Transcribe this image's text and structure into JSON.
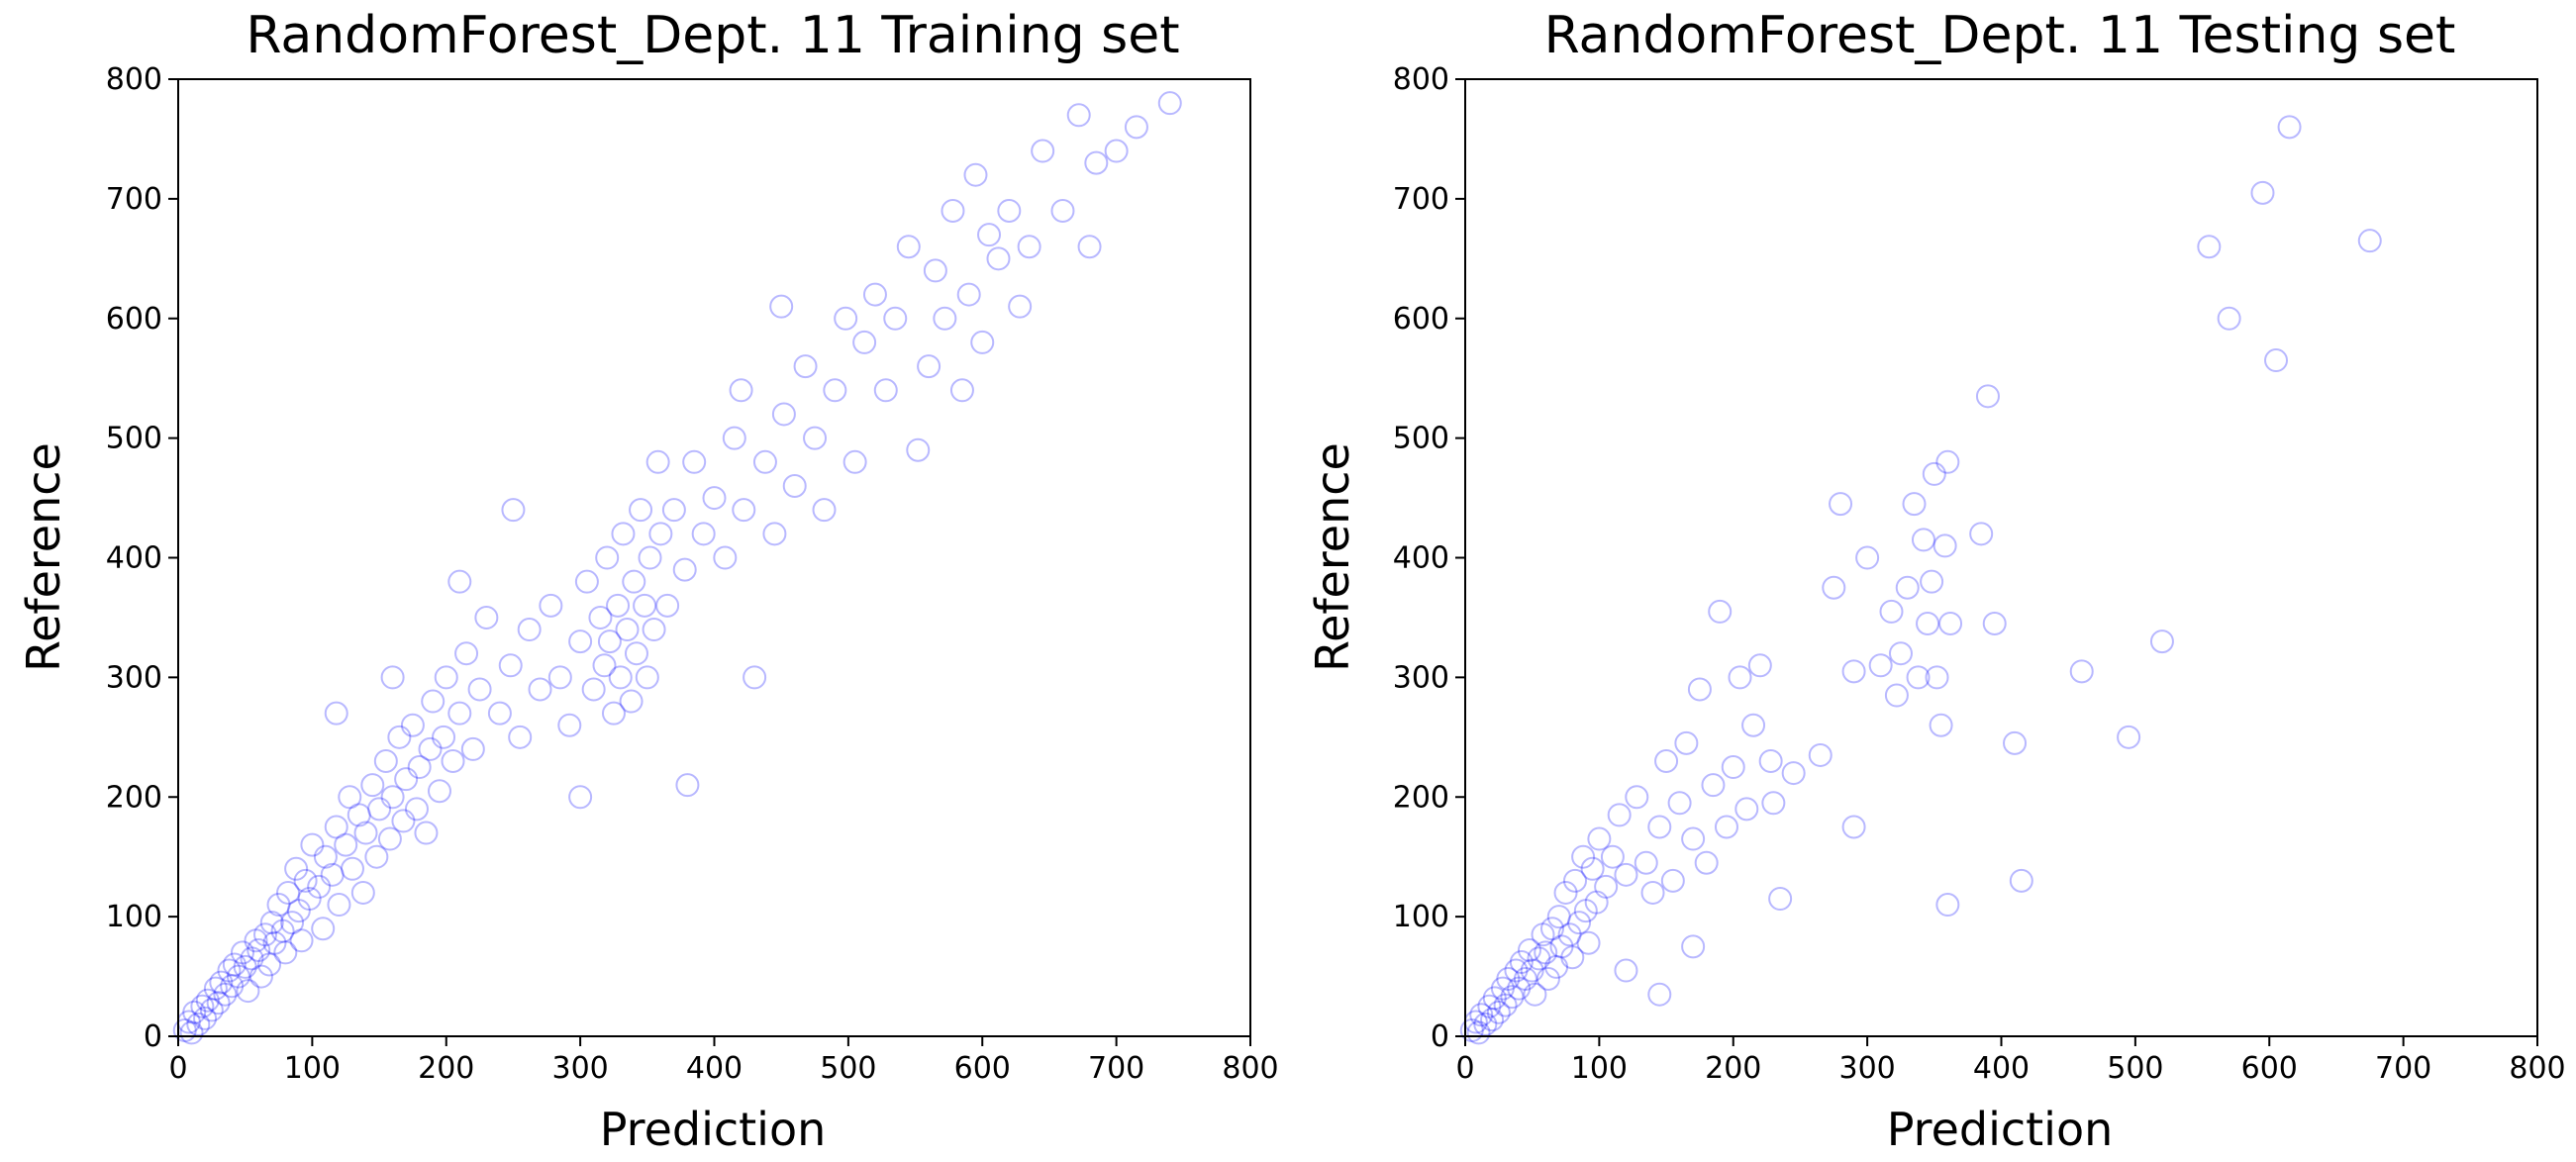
{
  "chart_data": [
    {
      "type": "scatter",
      "title": "RandomForest_Dept. 11 Training set",
      "xlabel": "Prediction",
      "ylabel": "Reference",
      "xlim": [
        0,
        800
      ],
      "ylim": [
        0,
        800
      ],
      "xticks": [
        "0",
        "100",
        "200",
        "300",
        "400",
        "500",
        "600",
        "700",
        "800"
      ],
      "yticks": [
        "0",
        "100",
        "200",
        "300",
        "400",
        "500",
        "600",
        "700",
        "800"
      ],
      "grid": false,
      "marker": "open-circle",
      "color": "#0000ff",
      "points": [
        [
          5,
          5
        ],
        [
          8,
          12
        ],
        [
          10,
          3
        ],
        [
          12,
          20
        ],
        [
          15,
          10
        ],
        [
          18,
          25
        ],
        [
          20,
          15
        ],
        [
          22,
          30
        ],
        [
          25,
          22
        ],
        [
          28,
          40
        ],
        [
          30,
          28
        ],
        [
          32,
          45
        ],
        [
          35,
          35
        ],
        [
          38,
          55
        ],
        [
          40,
          42
        ],
        [
          42,
          60
        ],
        [
          45,
          50
        ],
        [
          48,
          70
        ],
        [
          50,
          58
        ],
        [
          52,
          38
        ],
        [
          55,
          65
        ],
        [
          58,
          80
        ],
        [
          60,
          72
        ],
        [
          62,
          50
        ],
        [
          65,
          85
        ],
        [
          68,
          60
        ],
        [
          70,
          95
        ],
        [
          72,
          78
        ],
        [
          75,
          110
        ],
        [
          78,
          88
        ],
        [
          80,
          70
        ],
        [
          82,
          120
        ],
        [
          85,
          95
        ],
        [
          88,
          140
        ],
        [
          90,
          105
        ],
        [
          92,
          80
        ],
        [
          95,
          130
        ],
        [
          98,
          115
        ],
        [
          100,
          160
        ],
        [
          105,
          125
        ],
        [
          108,
          90
        ],
        [
          110,
          150
        ],
        [
          115,
          135
        ],
        [
          118,
          175
        ],
        [
          120,
          110
        ],
        [
          125,
          160
        ],
        [
          128,
          200
        ],
        [
          130,
          140
        ],
        [
          135,
          185
        ],
        [
          138,
          120
        ],
        [
          140,
          170
        ],
        [
          145,
          210
        ],
        [
          148,
          150
        ],
        [
          150,
          190
        ],
        [
          155,
          230
        ],
        [
          158,
          165
        ],
        [
          160,
          200
        ],
        [
          165,
          250
        ],
        [
          168,
          180
        ],
        [
          170,
          215
        ],
        [
          175,
          260
        ],
        [
          178,
          190
        ],
        [
          180,
          225
        ],
        [
          185,
          170
        ],
        [
          188,
          240
        ],
        [
          190,
          280
        ],
        [
          195,
          205
        ],
        [
          198,
          250
        ],
        [
          200,
          300
        ],
        [
          205,
          230
        ],
        [
          210,
          270
        ],
        [
          215,
          320
        ],
        [
          220,
          240
        ],
        [
          225,
          290
        ],
        [
          230,
          350
        ],
        [
          240,
          270
        ],
        [
          248,
          310
        ],
        [
          255,
          250
        ],
        [
          262,
          340
        ],
        [
          270,
          290
        ],
        [
          278,
          360
        ],
        [
          285,
          300
        ],
        [
          292,
          260
        ],
        [
          300,
          330
        ],
        [
          305,
          380
        ],
        [
          310,
          290
        ],
        [
          315,
          350
        ],
        [
          318,
          310
        ],
        [
          320,
          400
        ],
        [
          322,
          330
        ],
        [
          325,
          270
        ],
        [
          328,
          360
        ],
        [
          330,
          300
        ],
        [
          332,
          420
        ],
        [
          335,
          340
        ],
        [
          338,
          280
        ],
        [
          340,
          380
        ],
        [
          342,
          320
        ],
        [
          345,
          440
        ],
        [
          348,
          360
        ],
        [
          350,
          300
        ],
        [
          352,
          400
        ],
        [
          355,
          340
        ],
        [
          358,
          480
        ],
        [
          360,
          420
        ],
        [
          365,
          360
        ],
        [
          370,
          440
        ],
        [
          378,
          390
        ],
        [
          385,
          480
        ],
        [
          392,
          420
        ],
        [
          400,
          450
        ],
        [
          408,
          400
        ],
        [
          415,
          500
        ],
        [
          422,
          440
        ],
        [
          430,
          300
        ],
        [
          438,
          480
        ],
        [
          445,
          420
        ],
        [
          452,
          520
        ],
        [
          460,
          460
        ],
        [
          468,
          560
        ],
        [
          475,
          500
        ],
        [
          482,
          440
        ],
        [
          490,
          540
        ],
        [
          498,
          600
        ],
        [
          505,
          480
        ],
        [
          512,
          580
        ],
        [
          520,
          620
        ],
        [
          528,
          540
        ],
        [
          535,
          600
        ],
        [
          545,
          660
        ],
        [
          552,
          490
        ],
        [
          560,
          560
        ],
        [
          565,
          640
        ],
        [
          572,
          600
        ],
        [
          578,
          690
        ],
        [
          585,
          540
        ],
        [
          590,
          620
        ],
        [
          595,
          720
        ],
        [
          600,
          580
        ],
        [
          605,
          670
        ],
        [
          612,
          650
        ],
        [
          620,
          690
        ],
        [
          628,
          610
        ],
        [
          635,
          660
        ],
        [
          645,
          740
        ],
        [
          660,
          690
        ],
        [
          672,
          770
        ],
        [
          685,
          730
        ],
        [
          700,
          740
        ],
        [
          715,
          760
        ],
        [
          740,
          780
        ],
        [
          680,
          660
        ],
        [
          450,
          610
        ],
        [
          420,
          540
        ],
        [
          380,
          210
        ],
        [
          250,
          440
        ],
        [
          300,
          200
        ],
        [
          210,
          380
        ],
        [
          160,
          300
        ],
        [
          118,
          270
        ]
      ]
    },
    {
      "type": "scatter",
      "title": "RandomForest_Dept. 11 Testing set",
      "xlabel": "Prediction",
      "ylabel": "Reference",
      "xlim": [
        0,
        800
      ],
      "ylim": [
        0,
        800
      ],
      "xticks": [
        "0",
        "100",
        "200",
        "300",
        "400",
        "500",
        "600",
        "700",
        "800"
      ],
      "yticks": [
        "0",
        "100",
        "200",
        "300",
        "400",
        "500",
        "600",
        "700",
        "800"
      ],
      "grid": false,
      "marker": "open-circle",
      "color": "#0000ff",
      "points": [
        [
          5,
          5
        ],
        [
          8,
          12
        ],
        [
          10,
          3
        ],
        [
          12,
          18
        ],
        [
          15,
          10
        ],
        [
          18,
          25
        ],
        [
          20,
          14
        ],
        [
          22,
          32
        ],
        [
          25,
          20
        ],
        [
          28,
          40
        ],
        [
          30,
          26
        ],
        [
          32,
          48
        ],
        [
          35,
          33
        ],
        [
          38,
          55
        ],
        [
          40,
          40
        ],
        [
          42,
          62
        ],
        [
          45,
          48
        ],
        [
          48,
          72
        ],
        [
          50,
          55
        ],
        [
          52,
          35
        ],
        [
          55,
          65
        ],
        [
          58,
          85
        ],
        [
          60,
          70
        ],
        [
          62,
          48
        ],
        [
          65,
          90
        ],
        [
          68,
          58
        ],
        [
          70,
          100
        ],
        [
          72,
          75
        ],
        [
          75,
          120
        ],
        [
          78,
          85
        ],
        [
          80,
          66
        ],
        [
          82,
          130
        ],
        [
          85,
          95
        ],
        [
          88,
          150
        ],
        [
          90,
          105
        ],
        [
          92,
          78
        ],
        [
          95,
          140
        ],
        [
          98,
          112
        ],
        [
          100,
          165
        ],
        [
          105,
          125
        ],
        [
          110,
          150
        ],
        [
          115,
          185
        ],
        [
          120,
          135
        ],
        [
          128,
          200
        ],
        [
          135,
          145
        ],
        [
          140,
          120
        ],
        [
          145,
          175
        ],
        [
          150,
          230
        ],
        [
          155,
          130
        ],
        [
          160,
          195
        ],
        [
          165,
          245
        ],
        [
          170,
          165
        ],
        [
          175,
          290
        ],
        [
          180,
          145
        ],
        [
          185,
          210
        ],
        [
          190,
          355
        ],
        [
          195,
          175
        ],
        [
          200,
          225
        ],
        [
          205,
          300
        ],
        [
          210,
          190
        ],
        [
          215,
          260
        ],
        [
          220,
          310
        ],
        [
          228,
          230
        ],
        [
          235,
          115
        ],
        [
          245,
          220
        ],
        [
          265,
          235
        ],
        [
          275,
          375
        ],
        [
          280,
          445
        ],
        [
          290,
          305
        ],
        [
          300,
          400
        ],
        [
          310,
          310
        ],
        [
          318,
          355
        ],
        [
          322,
          285
        ],
        [
          325,
          320
        ],
        [
          330,
          375
        ],
        [
          335,
          445
        ],
        [
          338,
          300
        ],
        [
          342,
          415
        ],
        [
          345,
          345
        ],
        [
          348,
          380
        ],
        [
          350,
          470
        ],
        [
          352,
          300
        ],
        [
          355,
          260
        ],
        [
          358,
          410
        ],
        [
          360,
          480
        ],
        [
          362,
          345
        ],
        [
          385,
          420
        ],
        [
          390,
          535
        ],
        [
          395,
          345
        ],
        [
          410,
          245
        ],
        [
          415,
          130
        ],
        [
          460,
          305
        ],
        [
          495,
          250
        ],
        [
          520,
          330
        ],
        [
          555,
          660
        ],
        [
          570,
          600
        ],
        [
          595,
          705
        ],
        [
          605,
          565
        ],
        [
          615,
          760
        ],
        [
          675,
          665
        ],
        [
          145,
          35
        ],
        [
          170,
          75
        ],
        [
          120,
          55
        ],
        [
          360,
          110
        ],
        [
          290,
          175
        ],
        [
          230,
          195
        ]
      ]
    }
  ]
}
